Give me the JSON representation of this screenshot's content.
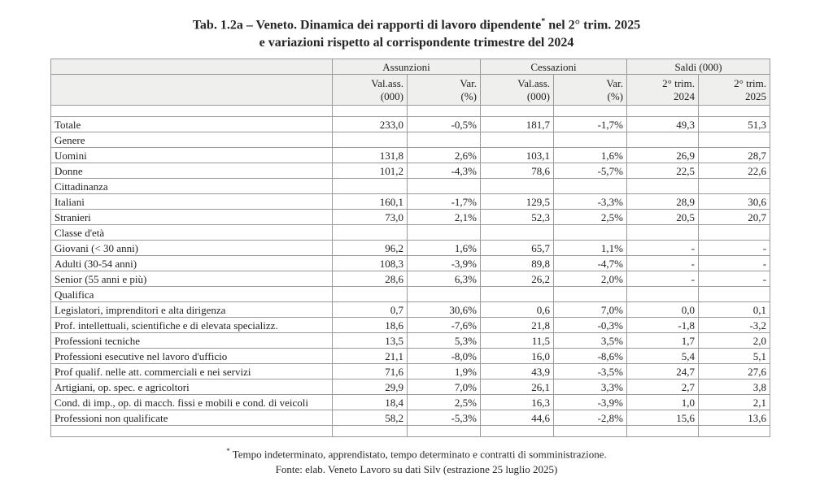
{
  "title": {
    "line1_prefix": "Tab. 1.2a – Veneto. Dinamica dei rapporti di lavoro dipendente",
    "line1_sup": "*",
    "line1_suffix": " nel 2° trim. 2025",
    "line2": "e variazioni rispetto al corrispondente trimestre del 2024"
  },
  "table": {
    "group_headers": [
      {
        "label": "Assunzioni"
      },
      {
        "label": "Cessazioni"
      },
      {
        "label": "Saldi (000)"
      }
    ],
    "sub_headers": [
      {
        "line1": "Val.ass.",
        "line2": "(000)"
      },
      {
        "line1": "Var.",
        "line2": "(%)"
      },
      {
        "line1": "Val.ass.",
        "line2": "(000)"
      },
      {
        "line1": "Var.",
        "line2": "(%)"
      },
      {
        "line1": "2° trim.",
        "line2": "2024"
      },
      {
        "line1": "2° trim.",
        "line2": "2025"
      }
    ],
    "rows": [
      {
        "type": "spacer"
      },
      {
        "type": "data",
        "bold": true,
        "label": "Totale",
        "values": [
          "233,0",
          "-0,5%",
          "181,7",
          "-1,7%",
          "49,3",
          "51,3"
        ]
      },
      {
        "type": "section",
        "label": "Genere"
      },
      {
        "type": "data",
        "label": "Uomini",
        "values": [
          "131,8",
          "2,6%",
          "103,1",
          "1,6%",
          "26,9",
          "28,7"
        ]
      },
      {
        "type": "data",
        "label": "Donne",
        "values": [
          "101,2",
          "-4,3%",
          "78,6",
          "-5,7%",
          "22,5",
          "22,6"
        ]
      },
      {
        "type": "section",
        "label": "Cittadinanza"
      },
      {
        "type": "data",
        "label": "Italiani",
        "values": [
          "160,1",
          "-1,7%",
          "129,5",
          "-3,3%",
          "28,9",
          "30,6"
        ]
      },
      {
        "type": "data",
        "label": "Stranieri",
        "values": [
          "73,0",
          "2,1%",
          "52,3",
          "2,5%",
          "20,5",
          "20,7"
        ]
      },
      {
        "type": "section",
        "label": "Classe d'età"
      },
      {
        "type": "data",
        "label": "Giovani (< 30 anni)",
        "values": [
          "96,2",
          "1,6%",
          "65,7",
          "1,1%",
          "-",
          "-"
        ]
      },
      {
        "type": "data",
        "label": "Adulti (30-54 anni)",
        "values": [
          "108,3",
          "-3,9%",
          "89,8",
          "-4,7%",
          "-",
          "-"
        ]
      },
      {
        "type": "data",
        "label": "Senior (55 anni e più)",
        "values": [
          "28,6",
          "6,3%",
          "26,2",
          "2,0%",
          "-",
          "-"
        ]
      },
      {
        "type": "section",
        "label": "Qualifica"
      },
      {
        "type": "data",
        "label": "Legislatori, imprenditori e alta dirigenza",
        "values": [
          "0,7",
          "30,6%",
          "0,6",
          "7,0%",
          "0,0",
          "0,1"
        ]
      },
      {
        "type": "data",
        "label": "Prof. intellettuali, scientifiche e di elevata specializz.",
        "values": [
          "18,6",
          "-7,6%",
          "21,8",
          "-0,3%",
          "-1,8",
          "-3,2"
        ]
      },
      {
        "type": "data",
        "label": "Professioni tecniche",
        "values": [
          "13,5",
          "5,3%",
          "11,5",
          "3,5%",
          "1,7",
          "2,0"
        ]
      },
      {
        "type": "data",
        "label": "Professioni esecutive nel lavoro d'ufficio",
        "values": [
          "21,1",
          "-8,0%",
          "16,0",
          "-8,6%",
          "5,4",
          "5,1"
        ]
      },
      {
        "type": "data",
        "label": "Prof qualif. nelle att. commerciali e nei servizi",
        "values": [
          "71,6",
          "1,9%",
          "43,9",
          "-3,5%",
          "24,7",
          "27,6"
        ]
      },
      {
        "type": "data",
        "label": "Artigiani, op. spec. e agricoltori",
        "values": [
          "29,9",
          "7,0%",
          "26,1",
          "3,3%",
          "2,7",
          "3,8"
        ]
      },
      {
        "type": "data",
        "label": "Cond. di imp., op. di macch. fissi e mobili e cond. di veicoli",
        "values": [
          "18,4",
          "2,5%",
          "16,3",
          "-3,9%",
          "1,0",
          "2,1"
        ]
      },
      {
        "type": "data",
        "label": "Professioni non qualificate",
        "values": [
          "58,2",
          "-5,3%",
          "44,6",
          "-2,8%",
          "15,6",
          "13,6"
        ]
      },
      {
        "type": "spacer"
      }
    ]
  },
  "footnotes": {
    "note_sup": "*",
    "note_text": " Tempo indeterminato, apprendistato, tempo determinato e contratti di somministrazione.",
    "source": "Fonte: elab. Veneto Lavoro su dati Silv (estrazione 25 luglio 2025)"
  },
  "colors": {
    "page_bg": "#ffffff",
    "header_bg": "#efefee",
    "border": "#9a9a9a",
    "text": "#262626"
  }
}
